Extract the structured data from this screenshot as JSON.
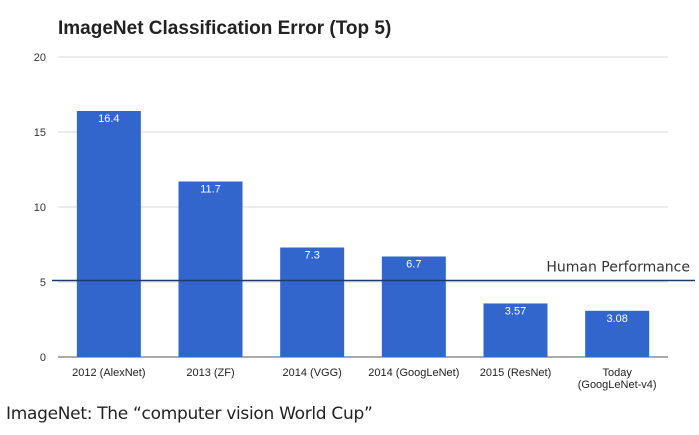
{
  "chart_data": {
    "type": "bar",
    "title": "ImageNet Classification Error (Top 5)",
    "categories": [
      [
        "2012 (AlexNet)"
      ],
      [
        "2013 (ZF)"
      ],
      [
        "2014 (VGG)"
      ],
      [
        "2014 (GoogLeNet)"
      ],
      [
        "2015 (ResNet)"
      ],
      [
        "Today",
        "(GoogLeNet-v4)"
      ]
    ],
    "values": [
      16.4,
      11.7,
      7.3,
      6.7,
      3.57,
      3.08
    ],
    "data_labels": [
      "16.4",
      "11.7",
      "7.3",
      "6.7",
      "3.57",
      "3.08"
    ],
    "ylim": [
      0,
      20
    ],
    "yticks": [
      0,
      5,
      10,
      15,
      20
    ],
    "grid": true,
    "bar_color": "#3366cc",
    "reference_line": {
      "label": "Human Performance",
      "value": 5.1,
      "color": "#1c3a6e"
    }
  },
  "caption": {
    "bold_part": "ImageNet",
    "rest": ": The “computer vision World Cup”"
  }
}
